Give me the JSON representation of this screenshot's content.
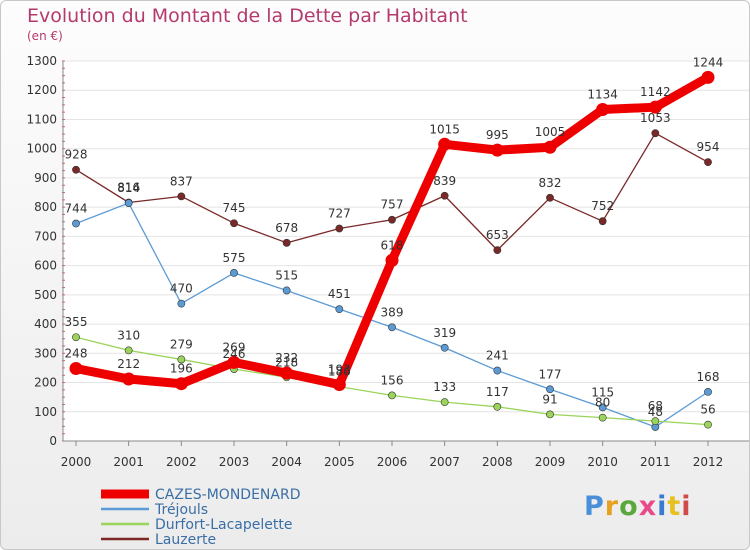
{
  "header": {
    "title": "Evolution du Montant de la Dette par Habitant",
    "unit": "(en €)"
  },
  "logo": {
    "text": "Proxiti",
    "colors": [
      "#4a90d9",
      "#e8a020",
      "#5aa83c",
      "#e84a8a",
      "#3a7ad0",
      "#e8c020",
      "#d04a4a"
    ]
  },
  "chart_data": {
    "type": "line",
    "title": "Evolution du Montant de la Dette par Habitant",
    "ylabel": "(en €)",
    "xlabel": "",
    "categories": [
      "2000",
      "2001",
      "2002",
      "2003",
      "2004",
      "2005",
      "2006",
      "2007",
      "2008",
      "2009",
      "2010",
      "2011",
      "2012"
    ],
    "ylim": [
      0,
      1300
    ],
    "yticks": [
      "0",
      "100",
      "200",
      "300",
      "400",
      "500",
      "600",
      "700",
      "800",
      "900",
      "1000",
      "1100",
      "1200",
      "1300"
    ],
    "grid": true,
    "legend_position": "bottom-left",
    "series": [
      {
        "name": "CAZES-MONDENARD",
        "color": "#ee0000",
        "values": [
          248,
          212,
          196,
          269,
          232,
          193,
          618,
          1015,
          995,
          1005,
          1134,
          1142,
          1244
        ],
        "labels": [
          "248",
          "212",
          "196",
          "269",
          "232",
          "193",
          "618",
          "1015",
          "995",
          "1005",
          "1134",
          "1142",
          "1244"
        ]
      },
      {
        "name": "Tréjouls",
        "color": "#5b9bd5",
        "values": [
          744,
          814,
          470,
          575,
          515,
          451,
          389,
          319,
          241,
          177,
          115,
          48,
          168
        ],
        "labels": [
          "744",
          "814",
          "470",
          "575",
          "515",
          "451",
          "389",
          "319",
          "241",
          "177",
          "115",
          "48",
          "168"
        ]
      },
      {
        "name": "Durfort-Lacapelette",
        "color": "#9ad45a",
        "values": [
          355,
          310,
          279,
          246,
          218,
          186,
          156,
          133,
          117,
          91,
          80,
          68,
          56
        ],
        "labels": [
          "355",
          "310",
          "279",
          "246",
          "218",
          "186",
          "156",
          "133",
          "117",
          "91",
          "80",
          "68",
          "56"
        ]
      },
      {
        "name": "Lauzerte",
        "color": "#7a2828",
        "values": [
          928,
          816,
          837,
          745,
          678,
          727,
          757,
          839,
          653,
          832,
          752,
          1053,
          954
        ],
        "labels": [
          "928",
          "816",
          "837",
          "745",
          "678",
          "727",
          "757",
          "839",
          "653",
          "832",
          "752",
          "1053",
          "954"
        ]
      }
    ]
  }
}
